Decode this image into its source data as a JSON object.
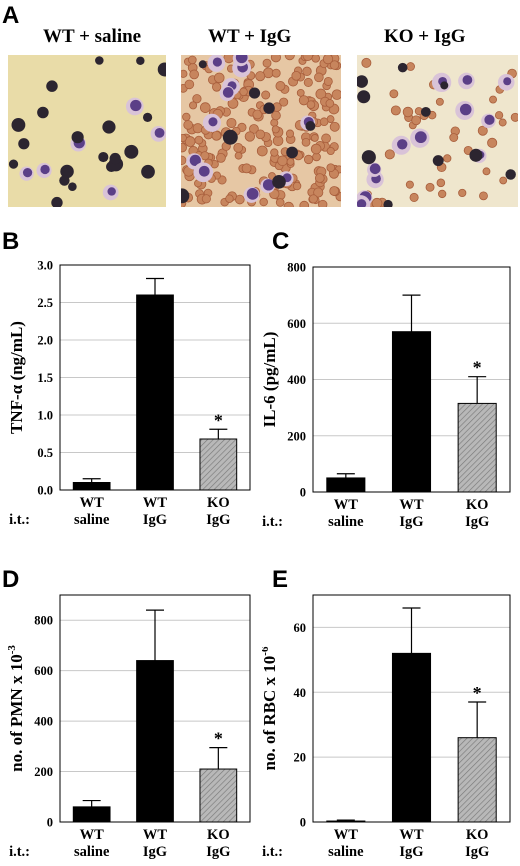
{
  "panel_a": {
    "letter": "A",
    "titles": [
      "WT + saline",
      "WT + IgG",
      "KO + IgG"
    ]
  },
  "chart_data": [
    {
      "panel": "B",
      "type": "bar",
      "ylabel": "TNF-α (ng/mL)",
      "ylim": [
        0,
        3.0
      ],
      "yticks": [
        "0.0",
        "0.5",
        "1.0",
        "1.5",
        "2.0",
        "2.5",
        "3.0"
      ],
      "row_label": "i.t.:",
      "categories": [
        [
          "WT",
          "saline"
        ],
        [
          "WT",
          "IgG"
        ],
        [
          "KO",
          "IgG"
        ]
      ],
      "values": [
        0.1,
        2.6,
        0.68
      ],
      "errors": [
        0.05,
        0.22,
        0.13
      ],
      "significant": [
        false,
        false,
        true
      ],
      "significance_mark": "*",
      "fills": [
        "#000000",
        "#000000",
        "hatch"
      ],
      "grid": true
    },
    {
      "panel": "C",
      "type": "bar",
      "ylabel": "IL-6  (pg/mL)",
      "ylim": [
        0,
        800
      ],
      "yticks": [
        "0",
        "200",
        "400",
        "600",
        "800"
      ],
      "row_label": "i.t.:",
      "categories": [
        [
          "WT",
          "saline"
        ],
        [
          "WT",
          "IgG"
        ],
        [
          "KO",
          "IgG"
        ]
      ],
      "values": [
        50,
        570,
        315
      ],
      "errors": [
        15,
        130,
        95
      ],
      "significant": [
        false,
        false,
        true
      ],
      "significance_mark": "*",
      "fills": [
        "#000000",
        "#000000",
        "hatch"
      ],
      "grid": true
    },
    {
      "panel": "D",
      "type": "bar",
      "ylabel": "no. of PMN x 10",
      "ylabel_sup": "-3",
      "ylim": [
        0,
        900
      ],
      "yticks": [
        "0",
        "200",
        "400",
        "600",
        "800"
      ],
      "row_label": "i.t.:",
      "categories": [
        [
          "WT",
          "saline"
        ],
        [
          "WT",
          "IgG"
        ],
        [
          "KO",
          "IgG"
        ]
      ],
      "values": [
        60,
        640,
        210
      ],
      "errors": [
        25,
        200,
        85
      ],
      "significant": [
        false,
        false,
        true
      ],
      "significance_mark": "*",
      "fills": [
        "#000000",
        "#000000",
        "hatch"
      ],
      "grid": true
    },
    {
      "panel": "E",
      "type": "bar",
      "ylabel": "no. of RBC  x 10",
      "ylabel_sup": "-6",
      "ylim": [
        0,
        70
      ],
      "yticks": [
        "0",
        "20",
        "40",
        "60"
      ],
      "row_label": "i.t.:",
      "categories": [
        [
          "WT",
          "saline"
        ],
        [
          "WT",
          "IgG"
        ],
        [
          "KO",
          "IgG"
        ]
      ],
      "values": [
        0.3,
        52,
        26
      ],
      "errors": [
        0.3,
        14,
        11
      ],
      "significant": [
        false,
        false,
        true
      ],
      "significance_mark": "*",
      "fills": [
        "#000000",
        "#000000",
        "hatch"
      ],
      "grid": true
    }
  ]
}
